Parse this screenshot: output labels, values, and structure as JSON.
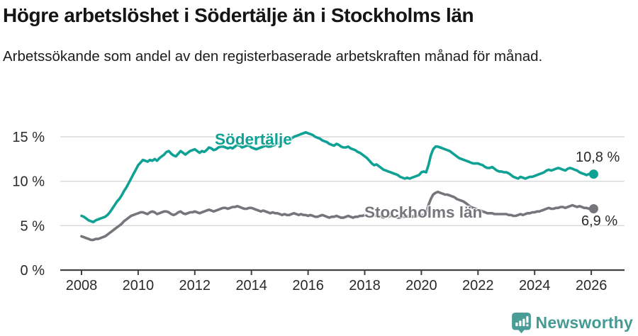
{
  "header": {
    "title": "Högre arbetslöshet i Södertälje än i Stockholms län",
    "subtitle": "Arbetssökande som andel av den registerbaserade arbetskraften månad för månad."
  },
  "chart_data": {
    "type": "line",
    "unit": "%",
    "x_start_year": 2008,
    "x_interval_months": 1,
    "x_end_label_note": "monthly series, Jan 2008 – Feb 2026",
    "xticks": [
      2008,
      2010,
      2012,
      2014,
      2016,
      2018,
      2020,
      2022,
      2024,
      2026
    ],
    "ytick_values": [
      0,
      5,
      10,
      15
    ],
    "ytick_labels": [
      "0 %",
      "5 %",
      "10 %",
      "15 %"
    ],
    "ylim": [
      0,
      16.8
    ],
    "grid": "horizontal",
    "legend_position": "inline-labels",
    "colors": {
      "grid": "#d9d9d9",
      "axis": "#414141",
      "tick_text": "#2a2a2a"
    },
    "series": [
      {
        "name": "Södertälje",
        "color": "#10A195",
        "end_label": "10,8 %",
        "end_value": 10.8,
        "values": [
          6.1,
          6.0,
          5.8,
          5.6,
          5.5,
          5.4,
          5.6,
          5.7,
          5.8,
          5.9,
          6.0,
          6.2,
          6.5,
          6.9,
          7.3,
          7.7,
          8.0,
          8.4,
          8.9,
          9.3,
          9.8,
          10.3,
          10.8,
          11.3,
          11.8,
          12.1,
          12.4,
          12.3,
          12.2,
          12.4,
          12.3,
          12.5,
          12.3,
          12.6,
          12.8,
          13.0,
          13.3,
          13.4,
          13.1,
          12.9,
          12.8,
          13.1,
          13.4,
          13.2,
          13.0,
          13.2,
          13.4,
          13.5,
          13.6,
          13.4,
          13.2,
          13.4,
          13.3,
          13.5,
          13.8,
          13.7,
          13.5,
          13.6,
          13.8,
          13.9,
          13.9,
          13.8,
          13.7,
          13.8,
          13.7,
          13.9,
          14.1,
          14.0,
          13.8,
          13.9,
          14.0,
          14.0,
          13.8,
          13.7,
          13.6,
          13.7,
          13.8,
          13.9,
          14.0,
          13.9,
          13.9,
          14.0,
          14.1,
          14.2,
          14.3,
          14.4,
          14.5,
          14.6,
          14.7,
          14.8,
          15.0,
          15.1,
          15.2,
          15.3,
          15.4,
          15.5,
          15.4,
          15.3,
          15.2,
          15.0,
          14.9,
          14.8,
          14.6,
          14.5,
          14.4,
          14.2,
          14.1,
          14.0,
          14.2,
          14.1,
          13.9,
          13.8,
          13.8,
          13.9,
          13.7,
          13.6,
          13.5,
          13.3,
          13.2,
          13.0,
          12.8,
          12.6,
          12.3,
          12.0,
          11.8,
          11.9,
          11.7,
          11.5,
          11.3,
          11.2,
          11.1,
          11.0,
          10.9,
          10.8,
          10.7,
          10.5,
          10.4,
          10.3,
          10.4,
          10.3,
          10.4,
          10.5,
          10.6,
          10.7,
          11.0,
          11.1,
          11.0,
          11.8,
          12.9,
          13.6,
          13.9,
          13.9,
          13.8,
          13.7,
          13.6,
          13.5,
          13.4,
          13.2,
          13.0,
          12.8,
          12.6,
          12.5,
          12.4,
          12.3,
          12.2,
          12.1,
          12.0,
          12.0,
          12.0,
          11.9,
          11.8,
          11.6,
          11.5,
          11.5,
          11.6,
          11.4,
          11.2,
          11.1,
          11.1,
          11.0,
          11.0,
          10.9,
          10.7,
          10.5,
          10.4,
          10.3,
          10.5,
          10.4,
          10.3,
          10.4,
          10.5,
          10.5,
          10.6,
          10.7,
          10.8,
          10.9,
          11.0,
          11.2,
          11.3,
          11.2,
          11.3,
          11.4,
          11.5,
          11.4,
          11.3,
          11.2,
          11.4,
          11.5,
          11.4,
          11.3,
          11.2,
          11.0,
          10.9,
          10.8,
          10.7,
          10.8,
          10.9,
          10.8
        ]
      },
      {
        "name": "Stockholms län",
        "color": "#76757B",
        "end_label": "6,9 %",
        "end_value": 6.9,
        "values": [
          3.8,
          3.7,
          3.6,
          3.5,
          3.4,
          3.4,
          3.5,
          3.5,
          3.6,
          3.7,
          3.8,
          4.0,
          4.2,
          4.4,
          4.6,
          4.8,
          5.0,
          5.2,
          5.5,
          5.7,
          5.9,
          6.1,
          6.2,
          6.3,
          6.4,
          6.5,
          6.5,
          6.4,
          6.3,
          6.5,
          6.6,
          6.5,
          6.3,
          6.4,
          6.5,
          6.6,
          6.6,
          6.5,
          6.3,
          6.2,
          6.3,
          6.5,
          6.6,
          6.4,
          6.3,
          6.4,
          6.5,
          6.5,
          6.6,
          6.5,
          6.4,
          6.5,
          6.6,
          6.7,
          6.8,
          6.7,
          6.6,
          6.7,
          6.8,
          6.9,
          7.0,
          7.0,
          6.9,
          7.0,
          7.1,
          7.1,
          7.2,
          7.1,
          7.0,
          6.9,
          6.9,
          7.0,
          7.0,
          6.9,
          6.8,
          6.7,
          6.6,
          6.7,
          6.6,
          6.5,
          6.4,
          6.5,
          6.4,
          6.4,
          6.3,
          6.2,
          6.3,
          6.2,
          6.2,
          6.3,
          6.4,
          6.3,
          6.2,
          6.3,
          6.2,
          6.2,
          6.1,
          6.2,
          6.1,
          6.0,
          6.0,
          6.1,
          6.2,
          6.1,
          6.0,
          5.9,
          6.0,
          6.0,
          6.1,
          6.0,
          5.9,
          5.9,
          6.0,
          6.1,
          6.0,
          5.9,
          6.0,
          6.0,
          6.1,
          6.1,
          6.2,
          6.1,
          6.0,
          6.0,
          6.1,
          6.2,
          6.1,
          6.0,
          5.9,
          6.0,
          6.0,
          6.1,
          6.1,
          6.0,
          5.9,
          5.9,
          6.0,
          6.0,
          6.1,
          6.0,
          6.0,
          6.1,
          6.1,
          6.2,
          6.2,
          6.2,
          6.4,
          7.3,
          8.0,
          8.5,
          8.7,
          8.8,
          8.7,
          8.6,
          8.5,
          8.5,
          8.4,
          8.3,
          8.2,
          8.0,
          7.9,
          7.8,
          7.7,
          7.5,
          7.3,
          7.1,
          7.0,
          6.9,
          6.8,
          6.7,
          6.6,
          6.5,
          6.4,
          6.4,
          6.4,
          6.3,
          6.3,
          6.3,
          6.3,
          6.3,
          6.3,
          6.2,
          6.2,
          6.1,
          6.1,
          6.2,
          6.3,
          6.2,
          6.3,
          6.4,
          6.4,
          6.5,
          6.5,
          6.6,
          6.6,
          6.7,
          6.8,
          6.9,
          7.0,
          6.9,
          6.9,
          7.0,
          7.0,
          7.1,
          7.1,
          7.0,
          7.1,
          7.2,
          7.3,
          7.2,
          7.1,
          7.2,
          7.1,
          7.0,
          7.0,
          6.9,
          7.0,
          6.9
        ]
      }
    ]
  },
  "footer": {
    "brand": "Newsworthy",
    "brand_color": "#459A94",
    "logo_icon": "newsworthy-bar-chart-bubble-icon"
  }
}
